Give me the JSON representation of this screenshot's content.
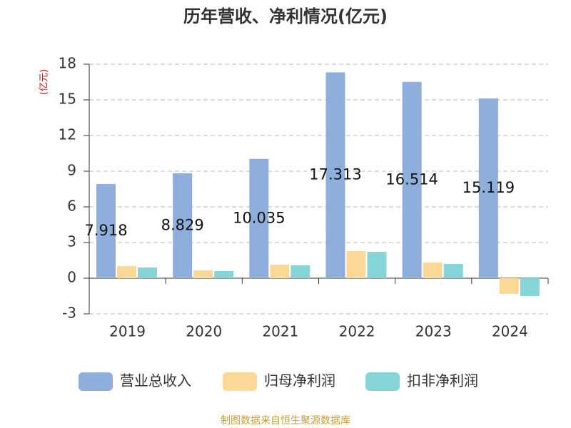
{
  "chart_data": {
    "type": "bar",
    "title": "历年营收、净利情况(亿元)",
    "y_label": "(亿元)",
    "categories": [
      "2019",
      "2020",
      "2021",
      "2022",
      "2023",
      "2024"
    ],
    "series": [
      {
        "name": "营业总收入",
        "color": "#8eaedb",
        "values": [
          7.918,
          8.829,
          10.035,
          17.313,
          16.514,
          15.119
        ]
      },
      {
        "name": "归母净利润",
        "color": "#fdd795",
        "values": [
          1.02,
          0.66,
          1.14,
          2.28,
          1.32,
          -1.32
        ]
      },
      {
        "name": "扣非净利润",
        "color": "#85d4d8",
        "values": [
          0.9,
          0.6,
          1.08,
          2.22,
          1.2,
          -1.5
        ]
      }
    ],
    "ylim": [
      -3,
      18
    ],
    "yticks": [
      -3,
      0,
      3,
      6,
      9,
      12,
      15,
      18
    ],
    "grid": true,
    "source": "制图数据来自恒生聚源数据库"
  }
}
